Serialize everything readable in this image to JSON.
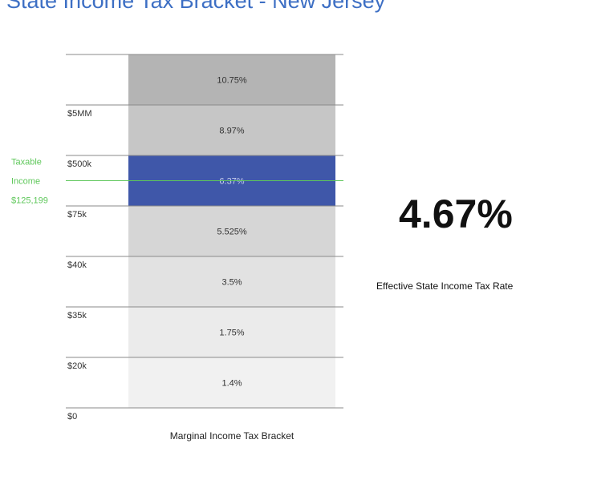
{
  "page_title": "State Income Tax Bracket - New Jersey",
  "chart_data": {
    "type": "bar",
    "xlabel": "Marginal Income Tax Bracket",
    "brackets": [
      {
        "lower": "$0",
        "rate": "1.4%"
      },
      {
        "lower": "$20k",
        "rate": "1.75%"
      },
      {
        "lower": "$35k",
        "rate": "3.5%"
      },
      {
        "lower": "$40k",
        "rate": "5.525%"
      },
      {
        "lower": "$75k",
        "rate": "6.37%"
      },
      {
        "lower": "$500k",
        "rate": "8.97%"
      },
      {
        "lower": "$5MM",
        "rate": "10.75%"
      }
    ],
    "highlight_index": 4,
    "taxable_income": {
      "label_line1": "Taxable",
      "label_line2": "Income",
      "value": "$125,199"
    },
    "colors": [
      "#f1f1f1",
      "#ebebeb",
      "#e2e2e2",
      "#d6d6d6",
      "#3f57a9",
      "#c6c6c6",
      "#b4b4b4"
    ],
    "highlight_text_color": "#c8d0ec",
    "marker_color": "#5ec75a"
  },
  "effective_rate": {
    "value": "4.67%",
    "label": "Effective State Income Tax Rate"
  }
}
